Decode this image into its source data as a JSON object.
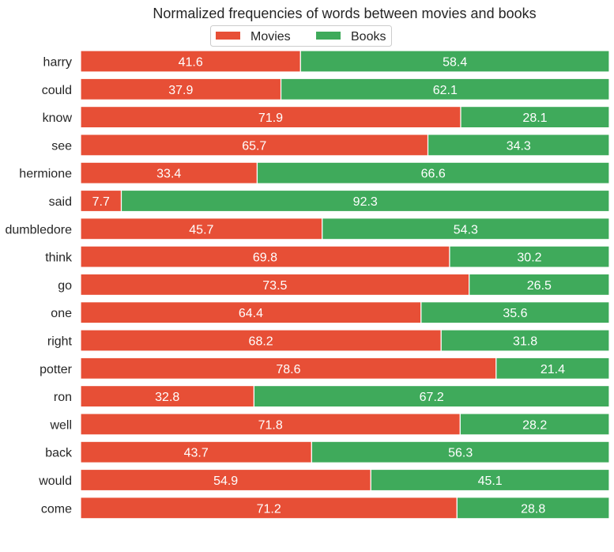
{
  "chart_data": {
    "type": "bar",
    "orientation": "horizontal",
    "stacked": true,
    "title": "Normalized frequencies of words between movies and books",
    "categories": [
      "harry",
      "could",
      "know",
      "see",
      "hermione",
      "said",
      "dumbledore",
      "think",
      "go",
      "one",
      "right",
      "potter",
      "ron",
      "well",
      "back",
      "would",
      "come"
    ],
    "series": [
      {
        "name": "Movies",
        "color": "#E74F36",
        "values": [
          41.6,
          37.9,
          71.9,
          65.7,
          33.4,
          7.7,
          45.7,
          69.8,
          73.5,
          64.4,
          68.2,
          78.6,
          32.8,
          71.8,
          43.7,
          54.9,
          71.2
        ]
      },
      {
        "name": "Books",
        "color": "#3FAA5B",
        "values": [
          58.4,
          62.1,
          28.1,
          34.3,
          66.6,
          92.3,
          54.3,
          30.2,
          26.5,
          35.6,
          31.8,
          21.4,
          67.2,
          28.2,
          56.3,
          45.1,
          28.8
        ]
      }
    ],
    "xlim": [
      0,
      100
    ],
    "grid": false,
    "legend_placement": "top-center",
    "data_labels": true
  }
}
